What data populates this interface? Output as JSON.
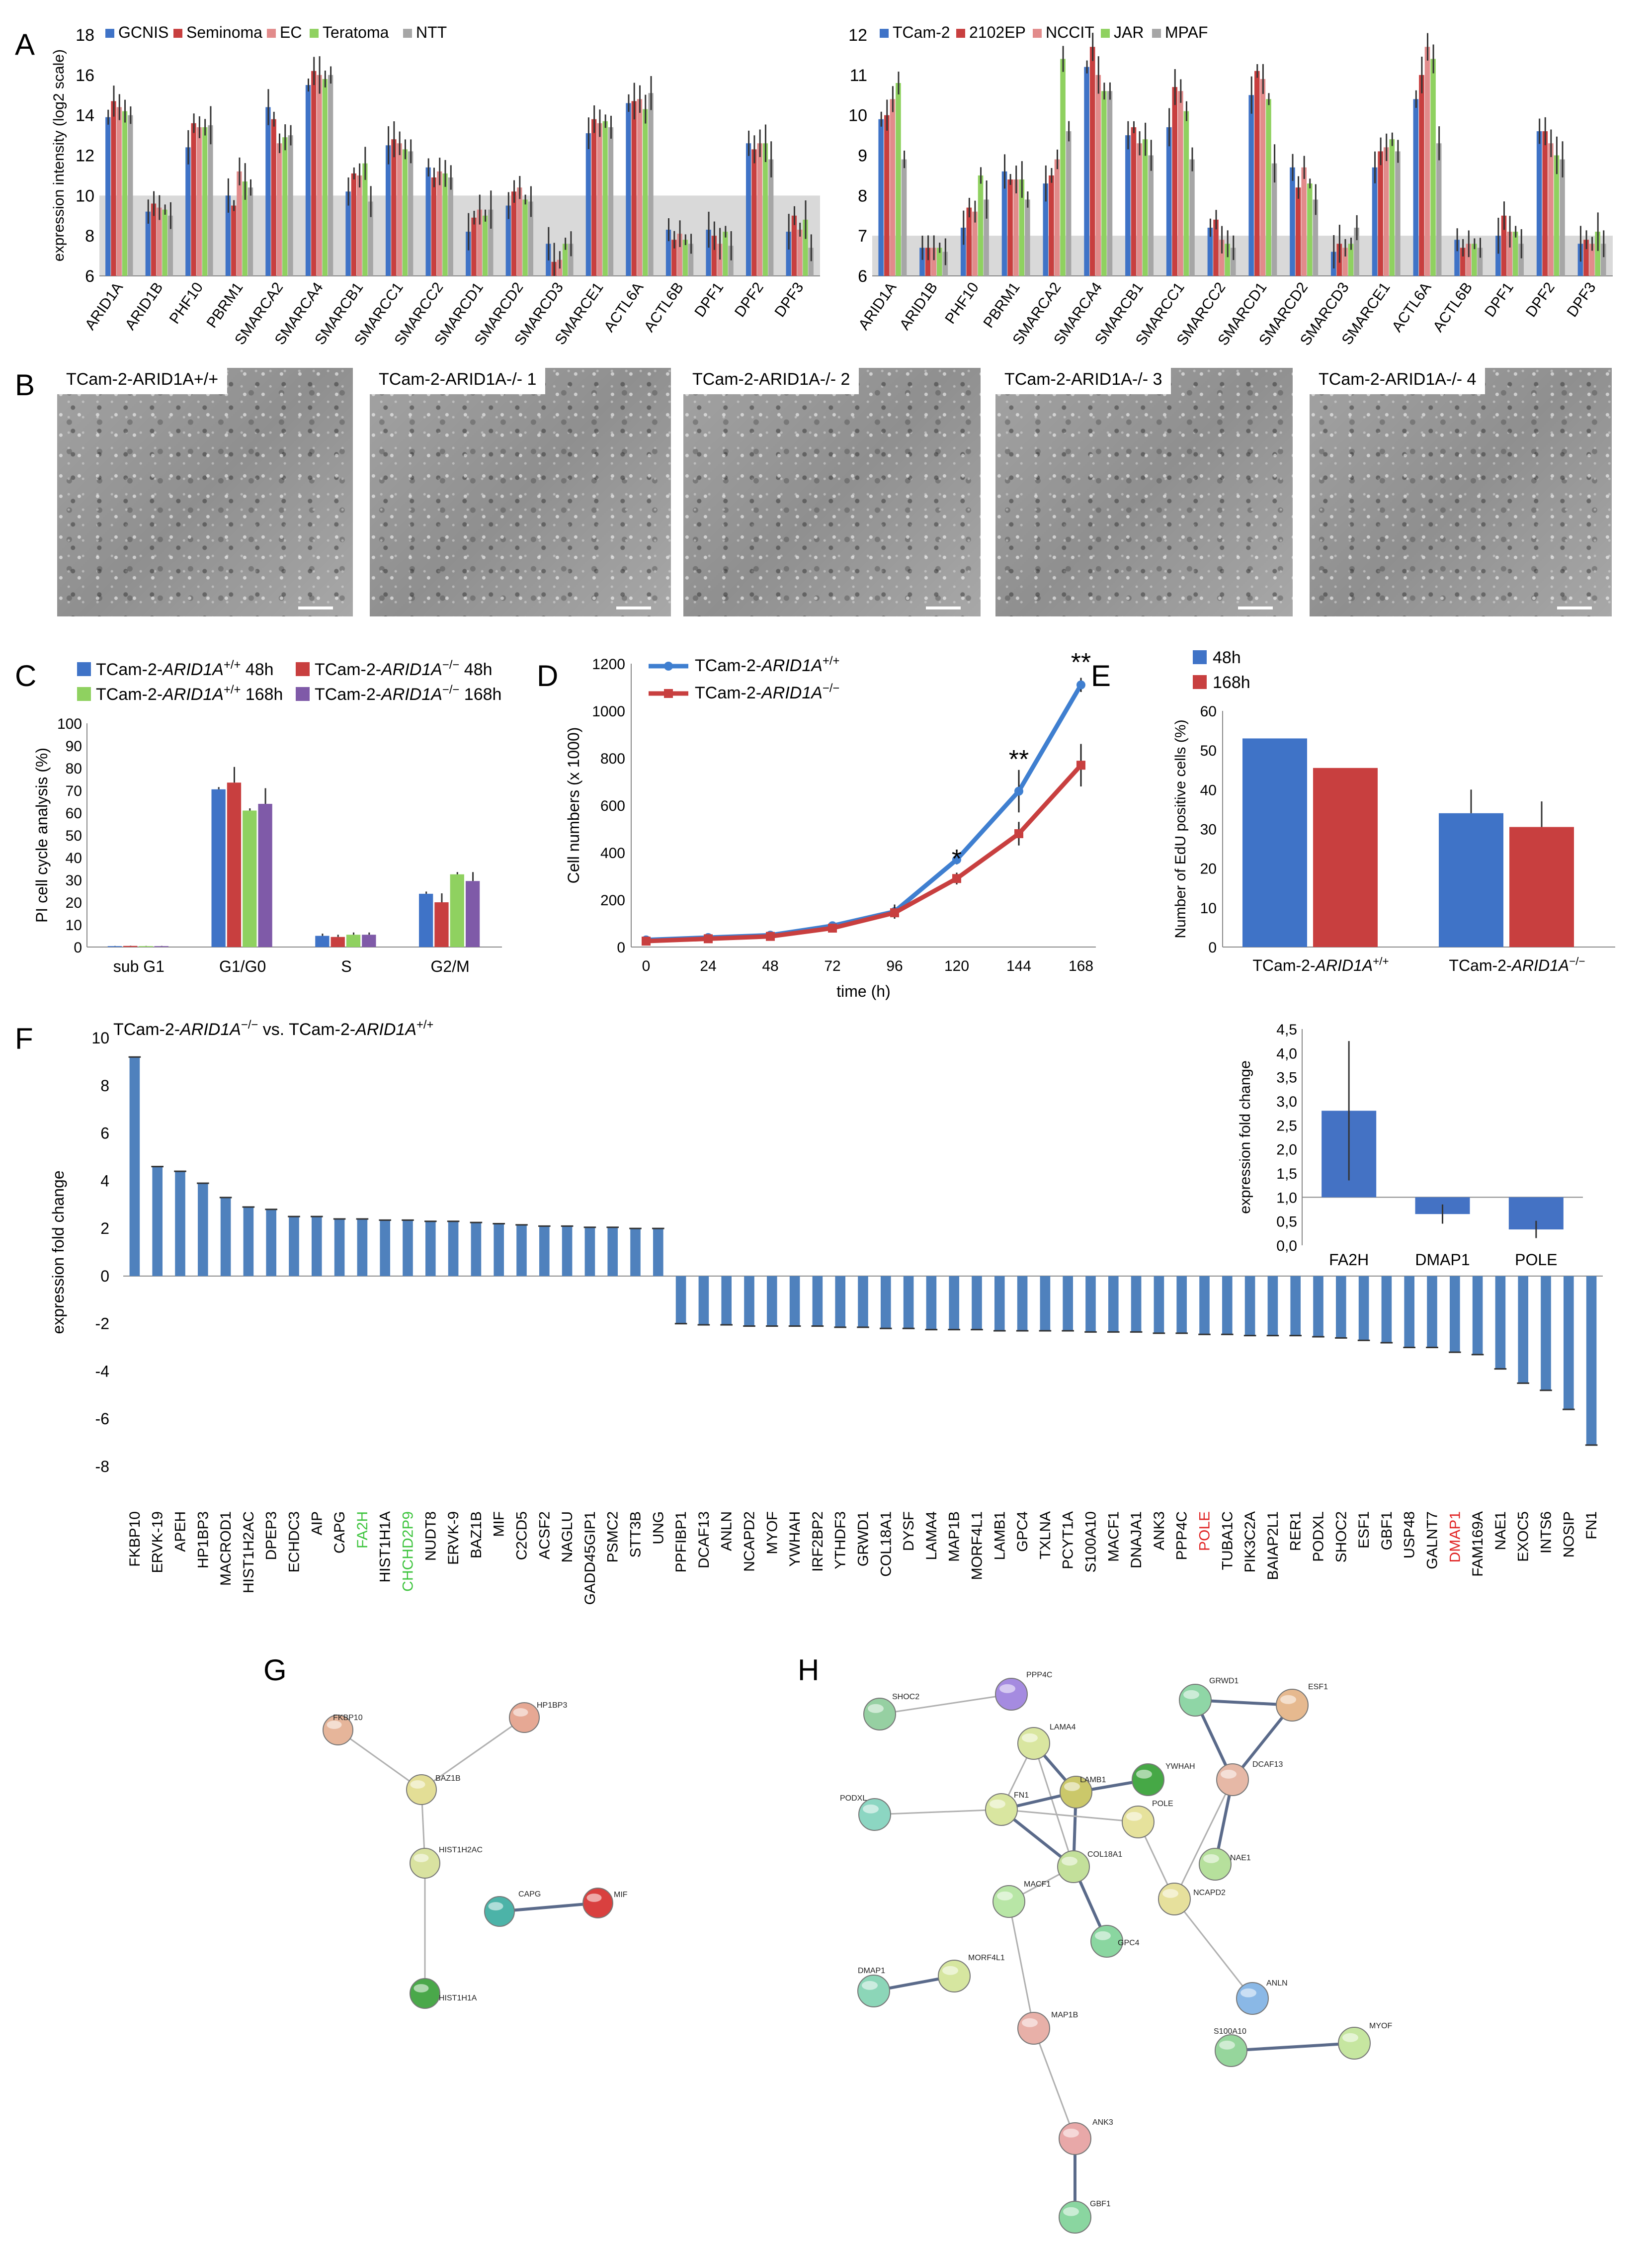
{
  "panel_letters": {
    "A": "A",
    "B": "B",
    "C": "C",
    "D": "D",
    "E": "E",
    "F": "F",
    "G": "G",
    "H": "H"
  },
  "chart_data": [
    {
      "id": "A-left",
      "type": "bar",
      "ylabel": "expression intensity (log2 scale)",
      "ylim": [
        6,
        18
      ],
      "yticks": [
        6,
        8,
        10,
        12,
        14,
        16,
        18
      ],
      "shaded_threshold": 10,
      "categories": [
        "ARID1A",
        "ARID1B",
        "PHF10",
        "PBRM1",
        "SMARCA2",
        "SMARCA4",
        "SMARCB1",
        "SMARCC1",
        "SMARCC2",
        "SMARCD1",
        "SMARCD2",
        "SMARCD3",
        "SMARCE1",
        "ACTL6A",
        "ACTL6B",
        "DPF1",
        "DPF2",
        "DPF3"
      ],
      "series": [
        {
          "name": "GCNIS",
          "color": "#3f73c7",
          "values": [
            13.9,
            9.2,
            12.4,
            10.0,
            14.4,
            15.5,
            10.2,
            12.5,
            11.4,
            8.2,
            9.5,
            7.6,
            13.1,
            14.6,
            8.3,
            8.3,
            12.6,
            8.2
          ]
        },
        {
          "name": "Seminoma",
          "color": "#c83f3f",
          "values": [
            14.7,
            9.6,
            13.6,
            9.5,
            13.8,
            16.2,
            11.1,
            12.8,
            10.9,
            8.9,
            10.2,
            6.7,
            13.8,
            14.7,
            7.8,
            8.0,
            12.3,
            9.0
          ]
        },
        {
          "name": "EC",
          "color": "#e28b8b",
          "values": [
            14.4,
            9.4,
            13.4,
            11.2,
            12.6,
            16.0,
            11.0,
            12.6,
            11.2,
            9.3,
            10.4,
            6.8,
            13.6,
            14.8,
            8.1,
            7.6,
            12.6,
            8.3
          ]
        },
        {
          "name": "Teratoma",
          "color": "#8fd160",
          "values": [
            14.2,
            9.3,
            13.4,
            10.7,
            12.9,
            15.8,
            11.6,
            12.3,
            11.1,
            9.0,
            9.8,
            7.6,
            13.7,
            14.3,
            7.8,
            8.2,
            12.6,
            8.8
          ]
        },
        {
          "name": "NTT",
          "color": "#a6a6a6",
          "values": [
            14.0,
            9.0,
            13.5,
            10.4,
            13.0,
            16.0,
            9.7,
            12.2,
            10.9,
            9.3,
            9.7,
            7.6,
            13.4,
            15.1,
            7.6,
            7.5,
            11.8,
            7.4
          ]
        }
      ]
    },
    {
      "id": "A-right",
      "type": "bar",
      "ylim": [
        6,
        12
      ],
      "yticks": [
        6,
        7,
        8,
        9,
        10,
        11,
        12
      ],
      "shaded_threshold": 7,
      "categories": [
        "ARID1A",
        "ARID1B",
        "PHF10",
        "PBRM1",
        "SMARCA2",
        "SMARCA4",
        "SMARCB1",
        "SMARCC1",
        "SMARCC2",
        "SMARCD1",
        "SMARCD2",
        "SMARCD3",
        "SMARCE1",
        "ACTL6A",
        "ACTL6B",
        "DPF1",
        "DPF2",
        "DPF3"
      ],
      "series": [
        {
          "name": "TCam-2",
          "color": "#3f73c7",
          "values": [
            9.9,
            6.7,
            7.2,
            8.6,
            8.3,
            11.2,
            9.5,
            9.7,
            7.2,
            10.5,
            8.7,
            6.6,
            8.7,
            10.4,
            6.9,
            7.0,
            9.6,
            6.8
          ]
        },
        {
          "name": "2102EP",
          "color": "#c83f3f",
          "values": [
            10.0,
            6.7,
            7.7,
            8.4,
            8.5,
            11.7,
            9.7,
            10.7,
            7.4,
            11.1,
            8.2,
            6.8,
            9.1,
            11.0,
            6.7,
            7.5,
            9.6,
            6.9
          ]
        },
        {
          "name": "NCCIT",
          "color": "#e28b8b",
          "values": [
            10.4,
            6.7,
            7.6,
            8.4,
            8.9,
            11.0,
            9.3,
            10.6,
            6.9,
            10.9,
            8.7,
            6.7,
            9.2,
            11.7,
            6.8,
            7.1,
            9.3,
            6.8
          ]
        },
        {
          "name": "JAR",
          "color": "#8fd160",
          "values": [
            10.8,
            6.7,
            8.5,
            8.4,
            11.4,
            10.6,
            9.4,
            10.1,
            6.8,
            10.4,
            8.3,
            6.8,
            9.4,
            11.4,
            6.8,
            7.1,
            9.0,
            7.1
          ]
        },
        {
          "name": "MPAF",
          "color": "#a6a6a6",
          "values": [
            8.9,
            6.6,
            7.9,
            7.9,
            9.6,
            10.6,
            9.0,
            8.9,
            6.7,
            8.8,
            7.9,
            7.2,
            9.1,
            9.3,
            6.7,
            6.8,
            8.9,
            6.8
          ]
        }
      ]
    },
    {
      "id": "C",
      "type": "bar",
      "ylabel": "PI cell cycle analysis (%)",
      "ylim": [
        0,
        100
      ],
      "yticks": [
        0,
        10,
        20,
        30,
        40,
        50,
        60,
        70,
        80,
        90,
        100
      ],
      "categories": [
        "sub G1",
        "G1/G0",
        "S",
        "G2/M"
      ],
      "series": [
        {
          "name": "TCam-2-ARID1A+/+ 48h",
          "color": "#3f73c7",
          "values": [
            0.4,
            70.5,
            5.0,
            23.8
          ]
        },
        {
          "name": "TCam-2-ARID1A-/- 48h",
          "color": "#c83f3f",
          "values": [
            0.5,
            73.5,
            4.5,
            20.0
          ]
        },
        {
          "name": "TCam-2-ARID1A+/+ 168h",
          "color": "#8fd160",
          "values": [
            0.4,
            61.0,
            5.5,
            32.5
          ]
        },
        {
          "name": "TCam-2-ARID1A-/- 168h",
          "color": "#7f5aa8",
          "values": [
            0.4,
            64.0,
            5.5,
            29.5
          ]
        }
      ]
    },
    {
      "id": "D",
      "type": "line",
      "xlabel": "time (h)",
      "ylabel": "Cell numbers (x 1000)",
      "x": [
        0,
        24,
        48,
        72,
        96,
        120,
        144,
        168
      ],
      "ylim": [
        0,
        1200
      ],
      "yticks": [
        0,
        200,
        400,
        600,
        800,
        1000,
        1200
      ],
      "series": [
        {
          "name": "TCam-2-ARID1A+/+",
          "color": "#3f7fd0",
          "values": [
            30,
            40,
            50,
            90,
            150,
            370,
            660,
            1110
          ]
        },
        {
          "name": "TCam-2-ARID1A-/-",
          "color": "#c83f3f",
          "values": [
            25,
            35,
            45,
            80,
            145,
            290,
            480,
            770
          ]
        }
      ],
      "annotations": [
        "*",
        "**",
        "**"
      ]
    },
    {
      "id": "E",
      "type": "bar",
      "ylabel": "Number of EdU positive cells (%)",
      "ylim": [
        0,
        60
      ],
      "yticks": [
        0,
        10,
        20,
        30,
        40,
        50,
        60
      ],
      "categories": [
        "TCam-2-ARID1A+/+",
        "TCam-2-ARID1A-/-"
      ],
      "series": [
        {
          "name": "48h",
          "color": "#3f73c7",
          "values": [
            53,
            34
          ]
        },
        {
          "name": "168h",
          "color": "#c83f3f",
          "values": [
            45.5,
            30.5
          ]
        }
      ]
    },
    {
      "id": "F",
      "type": "bar",
      "title": "TCam-2-ARID1A-/- vs. TCam-2-ARID1A+/+",
      "ylabel": "expression fold change",
      "ylim": [
        -8,
        10
      ],
      "yticks": [
        -8,
        -6,
        -4,
        -2,
        0,
        2,
        4,
        6,
        8,
        10
      ],
      "categories": [
        "FKBP10",
        "ERVK-19",
        "APEH",
        "HP1BP3",
        "MACROD1",
        "HIST1H2AC",
        "DPEP3",
        "ECHDC3",
        "AIP",
        "CAPG",
        "FA2H",
        "HIST1H1A",
        "CHCHD2P9",
        "NUDT8",
        "ERVK-9",
        "BAZ1B",
        "MIF",
        "C2CD5",
        "ACSF2",
        "NAGLU",
        "GADD45GIP1",
        "PSMC2",
        "STT3B",
        "UNG",
        "PPFIBP1",
        "DCAF13",
        "ANLN",
        "NCAPD2",
        "MYOF",
        "YWHAH",
        "IRF2BP2",
        "YTHDF3",
        "GRWD1",
        "COL18A1",
        "DYSF",
        "LAMA4",
        "MAP1B",
        "MORF4L1",
        "LAMB1",
        "GPC4",
        "TXLNA",
        "PCYT1A",
        "S100A10",
        "MACF1",
        "DNAJA1",
        "ANK3",
        "PPP4C",
        "POLE",
        "TUBA1C",
        "PIK3C2A",
        "BAIAP2L1",
        "RER1",
        "PODXL",
        "SHOC2",
        "ESF1",
        "GBF1",
        "USP48",
        "GALNT7",
        "DMAP1",
        "FAM169A",
        "NAE1",
        "EXOC5",
        "INTS6",
        "NOSIP",
        "FN1"
      ],
      "values": [
        9.2,
        4.6,
        4.4,
        3.9,
        3.3,
        2.9,
        2.8,
        2.5,
        2.5,
        2.4,
        2.4,
        2.35,
        2.35,
        2.3,
        2.3,
        2.25,
        2.2,
        2.15,
        2.1,
        2.1,
        2.05,
        2.05,
        2.0,
        2.0,
        -2.0,
        -2.05,
        -2.05,
        -2.1,
        -2.1,
        -2.1,
        -2.1,
        -2.15,
        -2.15,
        -2.2,
        -2.2,
        -2.25,
        -2.25,
        -2.25,
        -2.3,
        -2.3,
        -2.3,
        -2.3,
        -2.35,
        -2.35,
        -2.35,
        -2.4,
        -2.4,
        -2.45,
        -2.45,
        -2.5,
        -2.5,
        -2.5,
        -2.55,
        -2.6,
        -2.7,
        -2.8,
        -3.0,
        -3.0,
        -3.2,
        -3.3,
        -3.9,
        -4.5,
        -4.8,
        -5.6,
        -7.1
      ],
      "highlight_green": [
        "FA2H",
        "CHCHD2P9"
      ],
      "highlight_red": [
        "POLE",
        "DMAP1"
      ],
      "bar_color": "#4f81bd"
    },
    {
      "id": "F-inset",
      "type": "bar",
      "ylabel": "expression fold change",
      "ylim": [
        0,
        4.5
      ],
      "yticks": [
        "0,0",
        "0,5",
        "1,0",
        "1,5",
        "2,0",
        "2,5",
        "3,0",
        "3,5",
        "4,0",
        "4,5"
      ],
      "ytick_values": [
        0,
        0.5,
        1.0,
        1.5,
        2.0,
        2.5,
        3.0,
        3.5,
        4.0,
        4.5
      ],
      "baseline": 1.0,
      "categories": [
        "FA2H",
        "DMAP1",
        "POLE"
      ],
      "values": [
        2.8,
        0.65,
        0.33
      ],
      "bar_color": "#4472c4"
    }
  ],
  "panel_B": {
    "images": [
      {
        "label": "TCam-2-ARID1A+/+"
      },
      {
        "label": "TCam-2-ARID1A-/- 1"
      },
      {
        "label": "TCam-2-ARID1A-/- 2"
      },
      {
        "label": "TCam-2-ARID1A-/- 3"
      },
      {
        "label": "TCam-2-ARID1A-/- 4"
      }
    ]
  },
  "network_G": {
    "nodes": [
      {
        "id": "FKBP10",
        "color": "#e6b59a"
      },
      {
        "id": "HP1BP3",
        "color": "#e6a894"
      },
      {
        "id": "BAZ1B",
        "color": "#e3de96"
      },
      {
        "id": "HIST1H2AC",
        "color": "#d9e2a0"
      },
      {
        "id": "CAPG",
        "color": "#4cb3a8"
      },
      {
        "id": "MIF",
        "color": "#d9403f"
      },
      {
        "id": "HIST1H1A",
        "color": "#4aa84a"
      }
    ],
    "edges": [
      [
        "FKBP10",
        "BAZ1B"
      ],
      [
        "HP1BP3",
        "BAZ1B"
      ],
      [
        "BAZ1B",
        "HIST1H2AC"
      ],
      [
        "HIST1H2AC",
        "HIST1H1A"
      ],
      [
        "CAPG",
        "MIF"
      ]
    ]
  },
  "network_H": {
    "nodes": [
      {
        "id": "SHOC2",
        "color": "#96d0a2"
      },
      {
        "id": "PPP4C",
        "color": "#a58be0"
      },
      {
        "id": "LAMA4",
        "color": "#d9e6a0"
      },
      {
        "id": "YWHAH",
        "color": "#46a846"
      },
      {
        "id": "LAMB1",
        "color": "#cbc86a"
      },
      {
        "id": "GRWD1",
        "color": "#8fd6a6"
      },
      {
        "id": "ESF1",
        "color": "#e6b98f"
      },
      {
        "id": "DCAF13",
        "color": "#e6b8a6"
      },
      {
        "id": "PODXL",
        "color": "#8cd6c2"
      },
      {
        "id": "FN1",
        "color": "#d9e6a0"
      },
      {
        "id": "POLE",
        "color": "#e6e29c"
      },
      {
        "id": "COL18A1",
        "color": "#c3e09a"
      },
      {
        "id": "NAE1",
        "color": "#b6e09c"
      },
      {
        "id": "NCAPD2",
        "color": "#e6e09c"
      },
      {
        "id": "MACF1",
        "color": "#b8e6a6"
      },
      {
        "id": "GPC4",
        "color": "#8ad6a0"
      },
      {
        "id": "DMAP1",
        "color": "#8cd6b8"
      },
      {
        "id": "MORF4L1",
        "color": "#d6e6a0"
      },
      {
        "id": "MAP1B",
        "color": "#e8b0a8"
      },
      {
        "id": "ANLN",
        "color": "#8ab8e6"
      },
      {
        "id": "S100A10",
        "color": "#96d69c"
      },
      {
        "id": "MYOF",
        "color": "#c6e6a0"
      },
      {
        "id": "ANK3",
        "color": "#e8a8a8"
      },
      {
        "id": "GBF1",
        "color": "#8ad6a0"
      }
    ],
    "edges": [
      [
        "SHOC2",
        "PPP4C"
      ],
      [
        "LAMA4",
        "LAMB1"
      ],
      [
        "LAMA4",
        "FN1"
      ],
      [
        "LAMA4",
        "COL18A1"
      ],
      [
        "YWHAH",
        "LAMB1"
      ],
      [
        "LAMB1",
        "FN1"
      ],
      [
        "LAMB1",
        "COL18A1"
      ],
      [
        "PODXL",
        "FN1"
      ],
      [
        "FN1",
        "COL18A1"
      ],
      [
        "FN1",
        "POLE"
      ],
      [
        "COL18A1",
        "GPC4"
      ],
      [
        "COL18A1",
        "MACF1"
      ],
      [
        "POLE",
        "NCAPD2"
      ],
      [
        "GRWD1",
        "ESF1"
      ],
      [
        "GRWD1",
        "DCAF13"
      ],
      [
        "ESF1",
        "DCAF13"
      ],
      [
        "DCAF13",
        "NAE1"
      ],
      [
        "DCAF13",
        "NCAPD2"
      ],
      [
        "NCAPD2",
        "ANLN"
      ],
      [
        "DMAP1",
        "MORF4L1"
      ],
      [
        "MACF1",
        "MAP1B"
      ],
      [
        "MAP1B",
        "ANK3"
      ],
      [
        "ANK3",
        "GBF1"
      ],
      [
        "S100A10",
        "MYOF"
      ]
    ]
  }
}
